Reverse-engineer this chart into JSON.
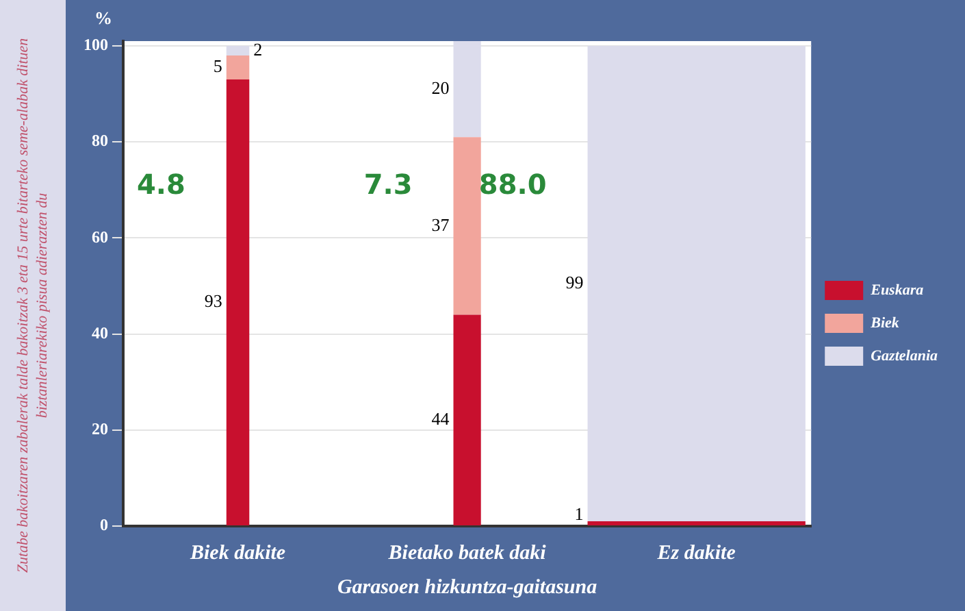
{
  "chart_data": {
    "type": "bar",
    "stacked": true,
    "ylabel": "%",
    "xlabel": "Garasoen hizkuntza-gaitasuna",
    "categories": [
      "Biek dakite",
      "Bietako batek daki",
      "Ez dakite"
    ],
    "series": [
      {
        "name": "Euskara",
        "color": "#c8102e",
        "values": [
          93,
          44,
          1
        ]
      },
      {
        "name": "Biek",
        "color": "#f2a59c",
        "values": [
          5,
          37,
          null
        ]
      },
      {
        "name": "Gaztelania",
        "color": "#dcdcec",
        "values": [
          2,
          20,
          99
        ]
      }
    ],
    "ylim": [
      0,
      101
    ],
    "yticks": [
      0,
      20,
      40,
      60,
      80,
      100
    ],
    "grid": "y",
    "legend": "right",
    "data_labels": true,
    "annotations": [
      "4.8",
      "7.3",
      "88.0",
      "Zutabe bakoitzaren zabalerak talde bakoitzak 3 eta 15 urte bitarteko seme-alabak dituen biztanleriarekiko pisua adierazten du"
    ]
  }
}
